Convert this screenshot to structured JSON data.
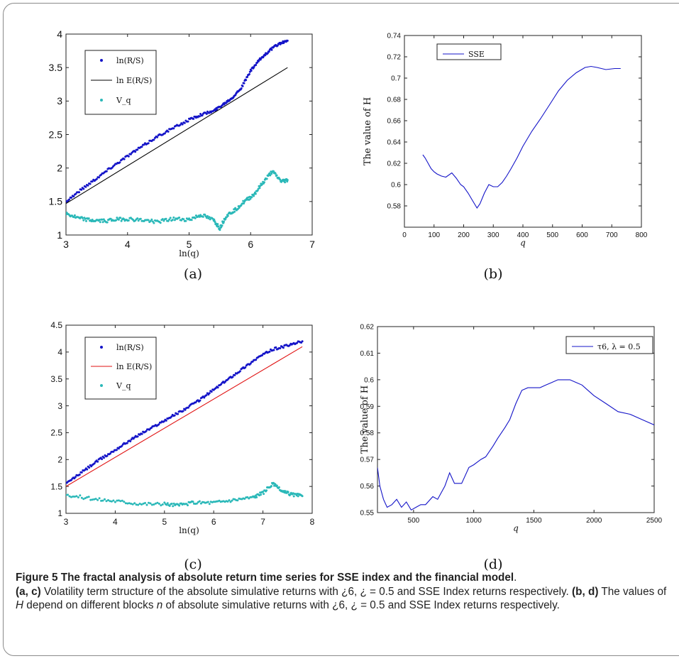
{
  "figure": {
    "subfig_labels": [
      "(a)",
      "(b)",
      "(c)",
      "(d)"
    ],
    "caption": {
      "title": "Figure 5 The fractal analysis of absolute return time series for SSE index and the financial model",
      "title_end": ".",
      "ac_label": "(a, c)",
      "ac_text": " Volatility term structure of the absolute simulative returns with ¿6, ¿ = 0.5 and SSE Index returns respectively. ",
      "bd_label": "(b, d)",
      "bd_pre": " The values of ",
      "bd_var_H": "H",
      "bd_mid": " depend on different blocks ",
      "bd_var_n": "n",
      "bd_post": " of absolute simulative returns with ¿6, ¿ = 0.5 and SSE Index returns respectively."
    }
  },
  "chart_data": [
    {
      "id": "a",
      "type": "scatter",
      "xlabel": "ln(q)",
      "ylabel": "",
      "xlim": [
        3,
        7
      ],
      "ylim": [
        1,
        4
      ],
      "xticks": [
        "3",
        "4",
        "5",
        "6",
        "7"
      ],
      "yticks": [
        "1",
        "1.5",
        "2",
        "2.5",
        "3",
        "3.5",
        "4"
      ],
      "legend_position": "top-left",
      "legend": [
        "ln(R/S)",
        "ln E(R/S)",
        "V_q"
      ],
      "colors": {
        "rs": "#1414c8",
        "ers": "#000000",
        "vq": "#2ab8b8"
      },
      "series": [
        {
          "name": "ln(R/S)",
          "kind": "points",
          "x": [
            3.0,
            3.25,
            3.5,
            3.75,
            4.0,
            4.25,
            4.5,
            4.75,
            5.0,
            5.2,
            5.4,
            5.55,
            5.7,
            5.85,
            6.0,
            6.15,
            6.3,
            6.45,
            6.6
          ],
          "y": [
            1.5,
            1.68,
            1.85,
            2.02,
            2.18,
            2.33,
            2.48,
            2.6,
            2.72,
            2.8,
            2.85,
            2.95,
            3.05,
            3.2,
            3.45,
            3.62,
            3.75,
            3.85,
            3.9
          ]
        },
        {
          "name": "ln E(R/S)",
          "kind": "line",
          "x": [
            3.0,
            6.6
          ],
          "y": [
            1.47,
            3.5
          ]
        },
        {
          "name": "V_q",
          "kind": "points",
          "x": [
            3.0,
            3.2,
            3.4,
            3.6,
            3.8,
            4.0,
            4.25,
            4.5,
            4.75,
            5.0,
            5.2,
            5.4,
            5.5,
            5.6,
            5.75,
            5.9,
            6.05,
            6.2,
            6.35,
            6.5,
            6.6
          ],
          "y": [
            1.32,
            1.25,
            1.22,
            1.21,
            1.23,
            1.24,
            1.22,
            1.2,
            1.24,
            1.23,
            1.3,
            1.22,
            1.1,
            1.28,
            1.38,
            1.5,
            1.6,
            1.78,
            1.95,
            1.8,
            1.82
          ]
        }
      ]
    },
    {
      "id": "b",
      "type": "line",
      "xlabel": "q",
      "ylabel": "The value of H",
      "xlim": [
        0,
        800
      ],
      "ylim": [
        0.56,
        0.74
      ],
      "xticks": [
        "0",
        "100",
        "200",
        "300",
        "400",
        "500",
        "600",
        "700",
        "800"
      ],
      "yticks": [
        "0.58",
        "0.6",
        "0.62",
        "0.64",
        "0.66",
        "0.68",
        "0.7",
        "0.72",
        "0.74"
      ],
      "legend_position": "top-left",
      "legend": [
        "SSE"
      ],
      "colors": {
        "line": "#1414c8"
      },
      "series": [
        {
          "name": "SSE",
          "x": [
            62,
            70,
            80,
            90,
            100,
            110,
            125,
            140,
            160,
            175,
            190,
            200,
            215,
            230,
            245,
            255,
            270,
            285,
            300,
            315,
            330,
            345,
            360,
            380,
            400,
            430,
            460,
            490,
            520,
            550,
            580,
            610,
            630,
            650,
            680,
            710,
            730
          ],
          "y": [
            0.628,
            0.625,
            0.62,
            0.615,
            0.612,
            0.61,
            0.608,
            0.607,
            0.611,
            0.606,
            0.6,
            0.598,
            0.592,
            0.585,
            0.578,
            0.582,
            0.592,
            0.6,
            0.598,
            0.598,
            0.602,
            0.608,
            0.615,
            0.625,
            0.636,
            0.65,
            0.662,
            0.675,
            0.688,
            0.698,
            0.705,
            0.71,
            0.711,
            0.71,
            0.708,
            0.709,
            0.709
          ]
        }
      ]
    },
    {
      "id": "c",
      "type": "scatter",
      "xlabel": "ln(q)",
      "ylabel": "",
      "xlim": [
        3,
        8
      ],
      "ylim": [
        1,
        4.5
      ],
      "xticks": [
        "3",
        "4",
        "5",
        "6",
        "7",
        "8"
      ],
      "yticks": [
        "1",
        "1.5",
        "2",
        "2.5",
        "3",
        "3.5",
        "4",
        "4.5"
      ],
      "legend_position": "top-left",
      "legend": [
        "ln(R/S)",
        "ln E(R/S)",
        "V_q"
      ],
      "colors": {
        "rs": "#1414c8",
        "ers": "#e01010",
        "vq": "#2ab8b8"
      },
      "series": [
        {
          "name": "ln(R/S)",
          "kind": "points",
          "x": [
            3.0,
            3.3,
            3.6,
            3.9,
            4.2,
            4.5,
            4.8,
            5.1,
            5.4,
            5.7,
            6.0,
            6.3,
            6.6,
            6.9,
            7.2,
            7.5,
            7.8
          ],
          "y": [
            1.55,
            1.75,
            1.95,
            2.12,
            2.3,
            2.47,
            2.62,
            2.78,
            2.93,
            3.1,
            3.3,
            3.5,
            3.7,
            3.9,
            4.05,
            4.12,
            4.2
          ]
        },
        {
          "name": "ln E(R/S)",
          "kind": "line",
          "x": [
            3.0,
            7.8
          ],
          "y": [
            1.5,
            4.1
          ]
        },
        {
          "name": "V_q",
          "kind": "points",
          "x": [
            3.0,
            3.5,
            4.0,
            4.5,
            5.0,
            5.3,
            5.6,
            6.0,
            6.4,
            6.8,
            7.0,
            7.2,
            7.4,
            7.6,
            7.8
          ],
          "y": [
            1.35,
            1.27,
            1.23,
            1.18,
            1.17,
            1.15,
            1.2,
            1.2,
            1.25,
            1.3,
            1.38,
            1.55,
            1.4,
            1.35,
            1.32
          ]
        }
      ]
    },
    {
      "id": "d",
      "type": "line",
      "xlabel": "q",
      "ylabel": "The value of H",
      "xlim": [
        200,
        2500
      ],
      "ylim": [
        0.55,
        0.62
      ],
      "xticks": [
        "500",
        "1000",
        "1500",
        "2000",
        "2500"
      ],
      "yticks": [
        "0.55",
        "0.56",
        "0.57",
        "0.58",
        "0.59",
        "0.6",
        "0.61",
        "0.62"
      ],
      "legend_position": "top-right",
      "legend": [
        "τ6, λ = 0.5"
      ],
      "colors": {
        "line": "#1414c8"
      },
      "series": [
        {
          "name": "τ6, λ = 0.5",
          "x": [
            200,
            220,
            250,
            280,
            320,
            360,
            400,
            440,
            480,
            520,
            560,
            600,
            660,
            700,
            760,
            800,
            840,
            900,
            960,
            1000,
            1060,
            1100,
            1160,
            1200,
            1260,
            1300,
            1350,
            1400,
            1450,
            1500,
            1550,
            1600,
            1650,
            1700,
            1750,
            1800,
            1850,
            1900,
            1950,
            2000,
            2100,
            2200,
            2300,
            2400,
            2500
          ],
          "y": [
            0.567,
            0.56,
            0.555,
            0.552,
            0.553,
            0.555,
            0.552,
            0.554,
            0.551,
            0.552,
            0.553,
            0.553,
            0.556,
            0.555,
            0.56,
            0.565,
            0.561,
            0.561,
            0.567,
            0.568,
            0.57,
            0.571,
            0.575,
            0.578,
            0.582,
            0.585,
            0.591,
            0.596,
            0.597,
            0.597,
            0.597,
            0.598,
            0.599,
            0.6,
            0.6,
            0.6,
            0.599,
            0.598,
            0.596,
            0.594,
            0.591,
            0.588,
            0.587,
            0.585,
            0.583
          ]
        }
      ]
    }
  ]
}
